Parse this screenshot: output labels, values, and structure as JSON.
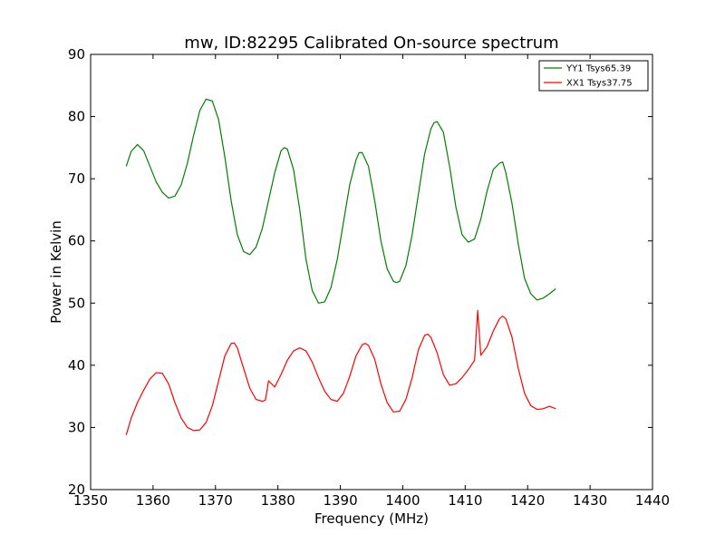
{
  "chart_data": {
    "type": "line",
    "title": "mw, ID:82295 Calibrated On-source spectrum",
    "xlabel": "Frequency (MHz)",
    "ylabel": "Power in Kelvin",
    "xlim": [
      1350,
      1440
    ],
    "ylim": [
      20,
      90
    ],
    "xticks": [
      1350,
      1360,
      1370,
      1380,
      1390,
      1400,
      1410,
      1420,
      1430,
      1440
    ],
    "yticks": [
      20,
      30,
      40,
      50,
      60,
      70,
      80,
      90
    ],
    "legend_position": "top-right",
    "grid": false,
    "series": [
      {
        "name": "YY1 Tsys65.39",
        "color": "#008000",
        "points": [
          [
            1355.7,
            72.0
          ],
          [
            1356.5,
            74.4
          ],
          [
            1357.5,
            75.5
          ],
          [
            1358.5,
            74.5
          ],
          [
            1359.5,
            72.0
          ],
          [
            1360.5,
            69.5
          ],
          [
            1361.5,
            67.8
          ],
          [
            1362.5,
            66.9
          ],
          [
            1363.5,
            67.2
          ],
          [
            1364.5,
            69.0
          ],
          [
            1365.5,
            72.5
          ],
          [
            1366.5,
            77.0
          ],
          [
            1367.5,
            81.0
          ],
          [
            1368.5,
            82.8
          ],
          [
            1369.5,
            82.5
          ],
          [
            1370.5,
            79.5
          ],
          [
            1371.5,
            73.5
          ],
          [
            1372.5,
            66.5
          ],
          [
            1373.5,
            61.0
          ],
          [
            1374.5,
            58.3
          ],
          [
            1375.5,
            57.8
          ],
          [
            1376.5,
            59.0
          ],
          [
            1377.5,
            62.0
          ],
          [
            1378.5,
            66.5
          ],
          [
            1379.5,
            71.0
          ],
          [
            1380.5,
            74.5
          ],
          [
            1381.0,
            75.0
          ],
          [
            1381.5,
            74.8
          ],
          [
            1382.5,
            71.5
          ],
          [
            1383.5,
            65.0
          ],
          [
            1384.5,
            57.0
          ],
          [
            1385.5,
            52.0
          ],
          [
            1386.5,
            50.0
          ],
          [
            1387.5,
            50.2
          ],
          [
            1388.5,
            52.5
          ],
          [
            1389.5,
            57.0
          ],
          [
            1390.5,
            63.0
          ],
          [
            1391.5,
            69.0
          ],
          [
            1392.5,
            73.0
          ],
          [
            1393.0,
            74.2
          ],
          [
            1393.5,
            74.2
          ],
          [
            1394.5,
            72.0
          ],
          [
            1395.5,
            66.5
          ],
          [
            1396.5,
            60.0
          ],
          [
            1397.5,
            55.5
          ],
          [
            1398.5,
            53.5
          ],
          [
            1399.0,
            53.3
          ],
          [
            1399.5,
            53.5
          ],
          [
            1400.5,
            56.0
          ],
          [
            1401.5,
            61.0
          ],
          [
            1402.5,
            67.5
          ],
          [
            1403.5,
            74.0
          ],
          [
            1404.5,
            78.0
          ],
          [
            1405.0,
            79.0
          ],
          [
            1405.5,
            79.2
          ],
          [
            1406.5,
            77.5
          ],
          [
            1407.5,
            72.0
          ],
          [
            1408.5,
            65.5
          ],
          [
            1409.5,
            61.0
          ],
          [
            1410.5,
            59.8
          ],
          [
            1411.5,
            60.3
          ],
          [
            1412.5,
            63.5
          ],
          [
            1413.5,
            68.0
          ],
          [
            1414.5,
            71.5
          ],
          [
            1415.5,
            72.5
          ],
          [
            1416.0,
            72.7
          ],
          [
            1416.5,
            71.0
          ],
          [
            1417.5,
            66.0
          ],
          [
            1418.5,
            59.5
          ],
          [
            1419.5,
            54.0
          ],
          [
            1420.5,
            51.5
          ],
          [
            1421.5,
            50.5
          ],
          [
            1422.5,
            50.8
          ],
          [
            1423.5,
            51.5
          ],
          [
            1424.5,
            52.3
          ]
        ]
      },
      {
        "name": "XX1 Tsys37.75",
        "color": "#ff0000",
        "points": [
          [
            1355.7,
            28.8
          ],
          [
            1356.5,
            31.5
          ],
          [
            1357.5,
            34.0
          ],
          [
            1358.5,
            36.0
          ],
          [
            1359.5,
            37.8
          ],
          [
            1360.5,
            38.8
          ],
          [
            1361.5,
            38.7
          ],
          [
            1362.5,
            37.0
          ],
          [
            1363.5,
            34.0
          ],
          [
            1364.5,
            31.5
          ],
          [
            1365.5,
            30.0
          ],
          [
            1366.5,
            29.5
          ],
          [
            1367.5,
            29.6
          ],
          [
            1368.5,
            30.8
          ],
          [
            1369.5,
            33.5
          ],
          [
            1370.5,
            37.5
          ],
          [
            1371.5,
            41.5
          ],
          [
            1372.5,
            43.5
          ],
          [
            1373.0,
            43.6
          ],
          [
            1373.5,
            42.8
          ],
          [
            1374.5,
            39.5
          ],
          [
            1375.5,
            36.3
          ],
          [
            1376.5,
            34.5
          ],
          [
            1377.5,
            34.2
          ],
          [
            1378.0,
            34.4
          ],
          [
            1378.5,
            37.5
          ],
          [
            1379.5,
            36.5
          ],
          [
            1380.5,
            38.5
          ],
          [
            1381.5,
            40.8
          ],
          [
            1382.5,
            42.3
          ],
          [
            1383.5,
            42.8
          ],
          [
            1384.5,
            42.3
          ],
          [
            1385.5,
            40.5
          ],
          [
            1386.5,
            38.0
          ],
          [
            1387.5,
            35.8
          ],
          [
            1388.5,
            34.5
          ],
          [
            1389.5,
            34.2
          ],
          [
            1390.5,
            35.5
          ],
          [
            1391.5,
            38.2
          ],
          [
            1392.5,
            41.5
          ],
          [
            1393.5,
            43.3
          ],
          [
            1394.0,
            43.5
          ],
          [
            1394.5,
            43.2
          ],
          [
            1395.5,
            41.0
          ],
          [
            1396.5,
            37.0
          ],
          [
            1397.5,
            34.0
          ],
          [
            1398.5,
            32.5
          ],
          [
            1399.5,
            32.6
          ],
          [
            1400.5,
            34.5
          ],
          [
            1401.5,
            38.0
          ],
          [
            1402.5,
            42.5
          ],
          [
            1403.5,
            44.8
          ],
          [
            1404.0,
            45.0
          ],
          [
            1404.5,
            44.5
          ],
          [
            1405.5,
            42.0
          ],
          [
            1406.5,
            38.5
          ],
          [
            1407.5,
            36.8
          ],
          [
            1408.5,
            37.0
          ],
          [
            1409.5,
            38.0
          ],
          [
            1410.5,
            39.3
          ],
          [
            1411.5,
            40.8
          ],
          [
            1412.0,
            48.8
          ],
          [
            1412.5,
            41.6
          ],
          [
            1413.5,
            43.0
          ],
          [
            1414.5,
            45.5
          ],
          [
            1415.5,
            47.5
          ],
          [
            1416.0,
            47.9
          ],
          [
            1416.5,
            47.5
          ],
          [
            1417.5,
            44.5
          ],
          [
            1418.5,
            39.5
          ],
          [
            1419.5,
            35.5
          ],
          [
            1420.5,
            33.5
          ],
          [
            1421.5,
            32.9
          ],
          [
            1422.5,
            33.0
          ],
          [
            1423.5,
            33.4
          ],
          [
            1424.5,
            33.0
          ]
        ]
      }
    ]
  }
}
